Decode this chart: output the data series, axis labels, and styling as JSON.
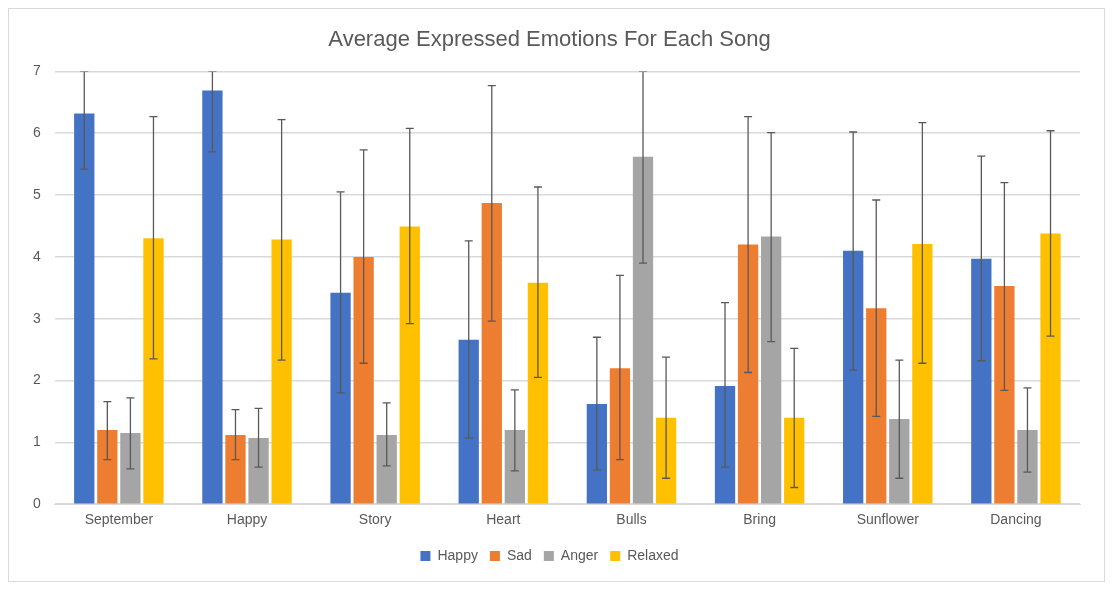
{
  "chart_data": {
    "type": "bar",
    "title": "Average Expressed Emotions For Each Song",
    "categories": [
      "September",
      "Happy",
      "Story",
      "Heart",
      "Bulls",
      "Bring",
      "Sunflower",
      "Dancing"
    ],
    "series": [
      {
        "name": "Happy",
        "color": "#4472c4",
        "values": [
          6.32,
          6.69,
          3.42,
          2.66,
          1.62,
          1.91,
          4.1,
          3.97
        ],
        "errors": [
          [
            5.42,
            7
          ],
          [
            5.7,
            7
          ],
          [
            1.8,
            5.05
          ],
          [
            1.07,
            4.26
          ],
          [
            0.55,
            2.7
          ],
          [
            0.6,
            3.26
          ],
          [
            2.17,
            6.02
          ],
          [
            2.32,
            5.63
          ]
        ]
      },
      {
        "name": "Sad",
        "color": "#ed7d31",
        "values": [
          1.2,
          1.12,
          4.0,
          4.87,
          2.2,
          4.2,
          3.17,
          3.53
        ],
        "errors": [
          [
            0.72,
            1.66
          ],
          [
            0.72,
            1.53
          ],
          [
            2.28,
            5.73
          ],
          [
            2.96,
            6.77
          ],
          [
            0.72,
            3.7
          ],
          [
            2.13,
            6.27
          ],
          [
            1.42,
            4.92
          ],
          [
            1.84,
            5.2
          ]
        ]
      },
      {
        "name": "Anger",
        "color": "#a5a5a5",
        "values": [
          1.15,
          1.07,
          1.12,
          1.2,
          5.62,
          4.33,
          1.38,
          1.2
        ],
        "errors": [
          [
            0.57,
            1.72
          ],
          [
            0.6,
            1.55
          ],
          [
            0.62,
            1.64
          ],
          [
            0.54,
            1.85
          ],
          [
            3.9,
            7
          ],
          [
            2.63,
            6.01
          ],
          [
            0.42,
            2.33
          ],
          [
            0.52,
            1.88
          ]
        ]
      },
      {
        "name": "Relaxed",
        "color": "#ffc000",
        "values": [
          4.3,
          4.28,
          4.49,
          3.58,
          1.4,
          1.4,
          4.21,
          4.38
        ],
        "errors": [
          [
            2.35,
            6.27
          ],
          [
            2.33,
            6.22
          ],
          [
            2.92,
            6.08
          ],
          [
            2.05,
            5.13
          ],
          [
            0.42,
            2.38
          ],
          [
            0.27,
            2.52
          ],
          [
            2.28,
            6.17
          ],
          [
            2.72,
            6.04
          ]
        ]
      }
    ],
    "ylim": [
      0,
      7
    ],
    "yticks": [
      0,
      1,
      2,
      3,
      4,
      5,
      6,
      7
    ],
    "grid": "y",
    "legend": "bottom"
  }
}
